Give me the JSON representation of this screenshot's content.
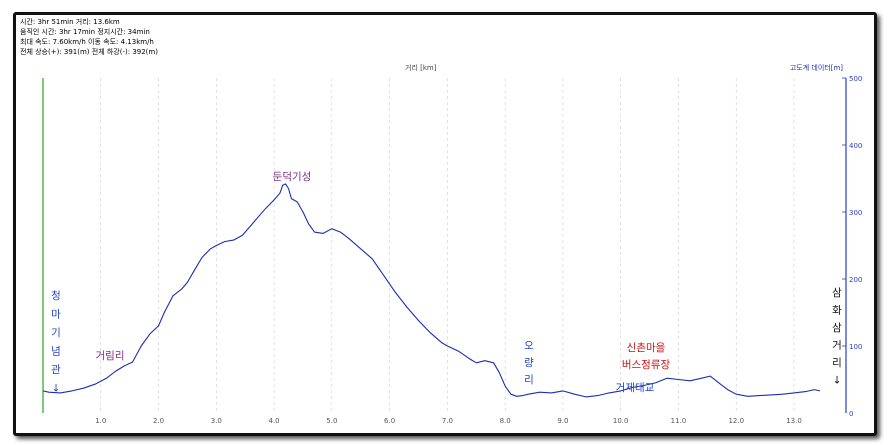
{
  "stats": {
    "line1": "시간: 3hr 51min  거리: 13.6km",
    "line2": "움직인 시간: 3hr 17min  정지시간: 34min",
    "line3": "최대 속도: 7.60km/h  이동 속도: 4.13km/h",
    "line4": "전체 상승(+): 391(m)  전체 하강(-): 392(m)"
  },
  "chart_data": {
    "type": "line",
    "xlabel": "거리 [km]",
    "ylabel": "고도계 데이터[m]",
    "xlim": [
      0,
      13.9
    ],
    "ylim": [
      0,
      500
    ],
    "xticks": [
      "1.0",
      "2.0",
      "3.0",
      "4.0",
      "5.0",
      "6.0",
      "7.0",
      "8.0",
      "9.0",
      "10.0",
      "11.0",
      "12.0",
      "13.0"
    ],
    "yticks": [
      "100",
      "200",
      "300",
      "400",
      "500"
    ],
    "yzero": "0",
    "grid": true,
    "series": [
      {
        "x": [
          0,
          0.1,
          0.3,
          0.5,
          0.7,
          0.9,
          1.1,
          1.25,
          1.4,
          1.55,
          1.7,
          1.85,
          2.0,
          2.1,
          2.25,
          2.4,
          2.5,
          2.6,
          2.75,
          2.9,
          3.0,
          3.15,
          3.3,
          3.45,
          3.6,
          3.7,
          3.85,
          4.0,
          4.1,
          4.15,
          4.2,
          4.25,
          4.3,
          4.4,
          4.5,
          4.6,
          4.7,
          4.85,
          5.0,
          5.15,
          5.3,
          5.5,
          5.7,
          5.9,
          6.1,
          6.3,
          6.5,
          6.7,
          6.9,
          7.0,
          7.2,
          7.4,
          7.5,
          7.65,
          7.8,
          7.9,
          8.0,
          8.1,
          8.2,
          8.3,
          8.4,
          8.6,
          8.8,
          9.0,
          9.2,
          9.4,
          9.6,
          9.8,
          10.0,
          10.2,
          10.4,
          10.6,
          10.8,
          11.0,
          11.2,
          11.4,
          11.55,
          11.7,
          11.85,
          12.0,
          12.2,
          12.4,
          12.6,
          12.8,
          13.0,
          13.2,
          13.35,
          13.45
        ],
        "y": [
          33,
          31,
          30,
          33,
          37,
          43,
          52,
          62,
          70,
          76,
          100,
          118,
          130,
          150,
          175,
          185,
          195,
          210,
          232,
          245,
          250,
          256,
          258,
          265,
          280,
          290,
          305,
          318,
          328,
          340,
          342,
          335,
          320,
          315,
          300,
          282,
          270,
          268,
          275,
          270,
          260,
          245,
          230,
          205,
          180,
          158,
          138,
          120,
          105,
          100,
          92,
          80,
          75,
          78,
          75,
          60,
          40,
          28,
          25,
          26,
          28,
          31,
          30,
          33,
          28,
          24,
          26,
          30,
          33,
          38,
          41,
          45,
          52,
          50,
          48,
          52,
          55,
          45,
          35,
          28,
          25,
          26,
          27,
          28,
          30,
          32,
          35,
          33
        ]
      }
    ],
    "annotations": [
      {
        "text": "청\n마\n기\n념\n관\n↓",
        "color": "#1f46c2"
      },
      {
        "text": "거림리",
        "color": "#7c2d86"
      },
      {
        "text": "둔덕기성",
        "color": "#7c2d86"
      },
      {
        "text": "오\n량\n리",
        "color": "#1f46c2"
      },
      {
        "text": "신촌마을\n버스정류장",
        "color": "#cc1111"
      },
      {
        "text": "거제대교",
        "color": "#1f46c2"
      },
      {
        "text": "삼\n화\n삼\n거\n리\n↓",
        "color": "#111111"
      }
    ],
    "colors": {
      "line": "#1a2fb0",
      "axis_left": "#22aa22",
      "axis_right": "#2b3ec2",
      "grid": "#cccccc"
    }
  }
}
